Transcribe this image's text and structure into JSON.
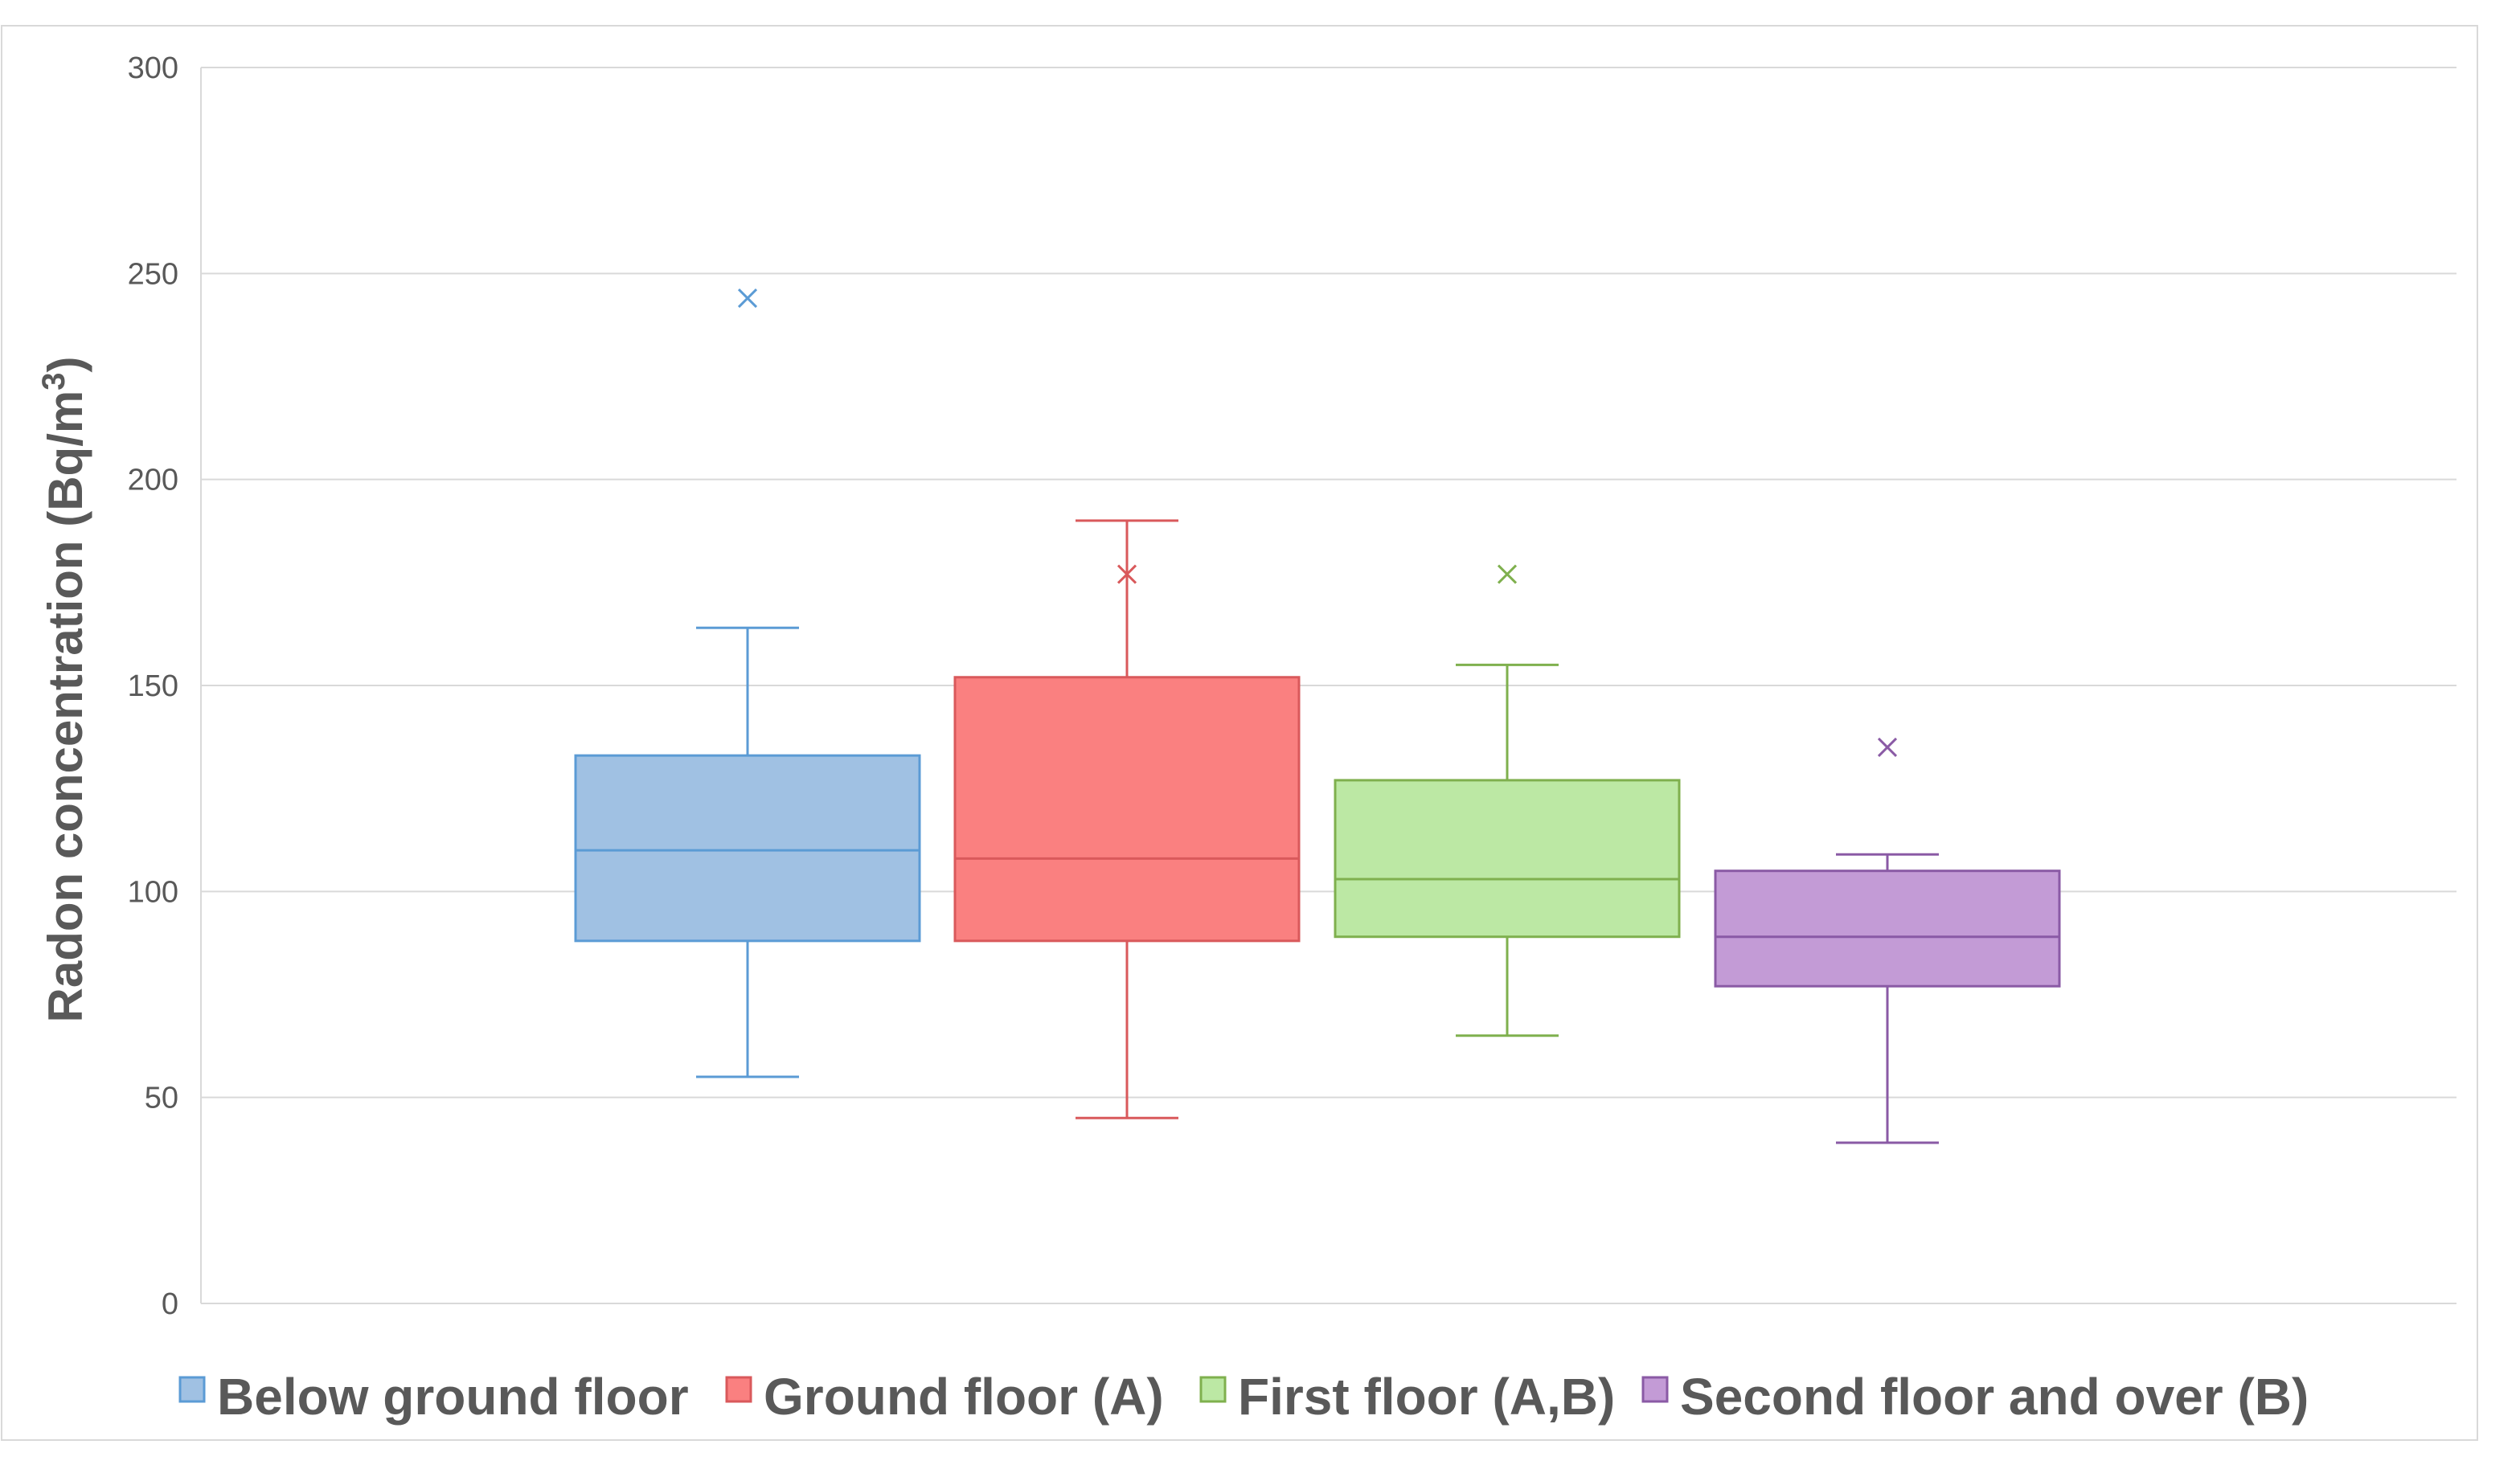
{
  "chart_data": {
    "type": "boxplot",
    "ylabel": "Radon concentration (Bq/m",
    "ylabel_sup": "3",
    "ylabel_close": ")",
    "ylim": [
      0,
      300
    ],
    "yticks": [
      0,
      50,
      100,
      150,
      200,
      250,
      300
    ],
    "grid": true,
    "legend_placement": "bottom",
    "series": [
      {
        "name": "Below ground floor",
        "color": "#5B9BD5",
        "fill": "#A0C1E3",
        "whisker_low": 55,
        "q1": 88,
        "median": 110,
        "q3": 133,
        "whisker_high": 164,
        "outliers": [
          244
        ]
      },
      {
        "name": "Ground floor (A)",
        "color": "#D9595B",
        "fill": "#FA8080",
        "whisker_low": 45,
        "q1": 88,
        "median": 108,
        "q3": 152,
        "whisker_high": 190,
        "outliers": [
          177
        ]
      },
      {
        "name": "First floor (A,B)",
        "color": "#7FB04E",
        "fill": "#BCE8A4",
        "whisker_low": 65,
        "q1": 89,
        "median": 103,
        "q3": 127,
        "whisker_high": 155,
        "outliers": [
          177
        ]
      },
      {
        "name": "Second floor and over (B)",
        "color": "#8A5AA5",
        "fill": "#C39BD6",
        "whisker_low": 39,
        "q1": 77,
        "median": 89,
        "q3": 105,
        "whisker_high": 109,
        "outliers": [
          135
        ]
      }
    ]
  }
}
